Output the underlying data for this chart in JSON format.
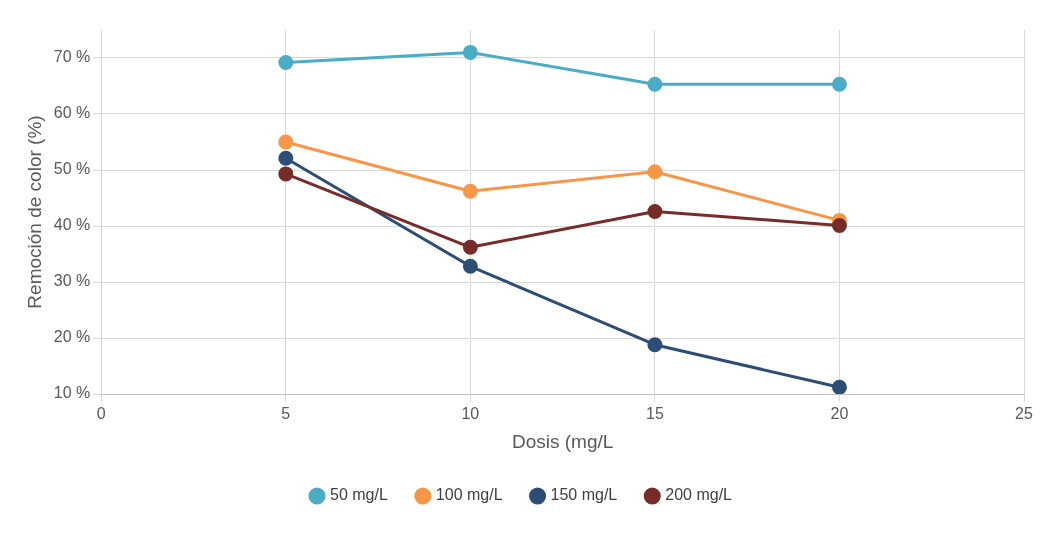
{
  "chart_data": {
    "type": "line",
    "xlabel": "Dosis (mg/L",
    "ylabel": "Remoción de color (%)",
    "x": [
      5,
      10,
      15,
      20
    ],
    "series": [
      {
        "name": "50 mg/L",
        "color": "#4bacc6",
        "values": [
          69.2,
          71.0,
          65.3,
          65.3
        ]
      },
      {
        "name": "100 mg/L",
        "color": "#f79646",
        "values": [
          55.0,
          46.2,
          49.7,
          41.0
        ]
      },
      {
        "name": "150 mg/L",
        "color": "#2c4d75",
        "values": [
          52.1,
          32.8,
          18.8,
          11.2
        ]
      },
      {
        "name": "200 mg/L",
        "color": "#772c2a",
        "values": [
          49.3,
          36.2,
          42.6,
          40.1
        ]
      }
    ],
    "xlim": [
      0,
      25
    ],
    "xticks": [
      0,
      5,
      10,
      15,
      20,
      25
    ],
    "ylim": [
      10,
      75
    ],
    "yticks": [
      {
        "value": 10,
        "label": "10 %"
      },
      {
        "value": 20,
        "label": "20 %"
      },
      {
        "value": 30,
        "label": "30 %"
      },
      {
        "value": 40,
        "label": "40 %"
      },
      {
        "value": 50,
        "label": "50 %"
      },
      {
        "value": 60,
        "label": "60 %"
      },
      {
        "value": 70,
        "label": "70 %"
      }
    ],
    "grid": true,
    "legend": "bottom",
    "marker": "circle",
    "line_style": "solid"
  }
}
